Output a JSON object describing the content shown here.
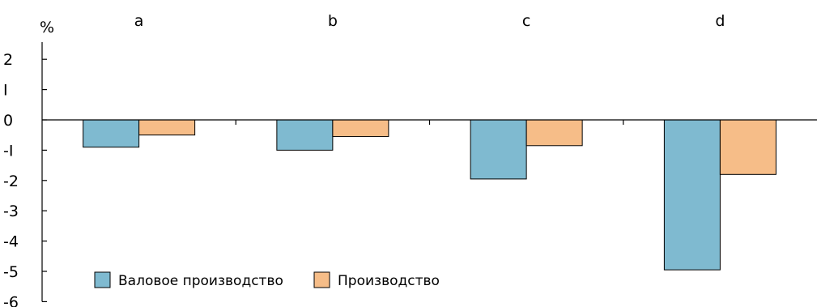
{
  "chart_data": {
    "type": "bar",
    "unit_label": "%",
    "categories": [
      "a",
      "b",
      "c",
      "d"
    ],
    "series": [
      {
        "name": "Валовое производство",
        "color": "#7fbad0",
        "values": [
          -0.9,
          -1.0,
          -1.95,
          -4.95
        ]
      },
      {
        "name": "Производство",
        "color": "#f6bd88",
        "values": [
          -0.5,
          -0.55,
          -0.85,
          -1.8
        ]
      }
    ],
    "ylim": [
      -6,
      2.5
    ],
    "yticks": [
      2,
      1,
      0,
      -1,
      -2,
      -3,
      -4,
      -5,
      -6
    ],
    "ytick_labels": [
      "2",
      "I",
      "0",
      "-I",
      "-2",
      "-3",
      "-4",
      "-5",
      "-6"
    ],
    "legend_position": "bottom-left",
    "grid": false
  }
}
